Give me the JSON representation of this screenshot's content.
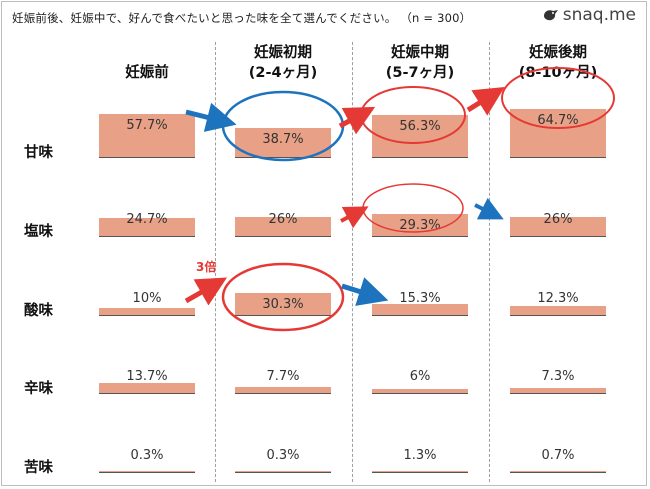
{
  "title": "妊娠前後、妊娠中で、好んで食べたいと思った味を全て選んでください。 （n = 300）",
  "logo": {
    "text": "snaq.me",
    "icon": "bird-logo-icon"
  },
  "annotation_note": "3倍",
  "colors": {
    "bar": "#e8a186",
    "red_highlight": "#e53935",
    "blue_highlight": "#1e73be"
  },
  "chart_data": {
    "type": "bar",
    "categories": [
      {
        "label": "妊娠前",
        "sub": ""
      },
      {
        "label": "妊娠初期",
        "sub": "(2-4ヶ月)"
      },
      {
        "label": "妊娠中期",
        "sub": "(5-7ヶ月)"
      },
      {
        "label": "妊娠後期",
        "sub": "(8-10ヶ月)"
      }
    ],
    "series": [
      {
        "name": "甘味",
        "values": [
          57.7,
          38.7,
          56.3,
          64.7
        ],
        "labels": [
          "57.7%",
          "38.7%",
          "56.3%",
          "64.7%"
        ]
      },
      {
        "name": "塩味",
        "values": [
          24.7,
          26,
          29.3,
          26
        ],
        "labels": [
          "24.7%",
          "26%",
          "29.3%",
          "26%"
        ]
      },
      {
        "name": "酸味",
        "values": [
          10,
          30.3,
          15.3,
          12.3
        ],
        "labels": [
          "10%",
          "30.3%",
          "15.3%",
          "12.3%"
        ]
      },
      {
        "name": "辛味",
        "values": [
          13.7,
          7.7,
          6,
          7.3
        ],
        "labels": [
          "13.7%",
          "7.7%",
          "6%",
          "7.3%"
        ]
      },
      {
        "name": "苦味",
        "values": [
          0.3,
          0.3,
          1.3,
          0.7
        ],
        "labels": [
          "0.3%",
          "0.3%",
          "1.3%",
          "0.7%"
        ]
      }
    ],
    "ylim": [
      0,
      100
    ],
    "grid": false,
    "legend": "none"
  }
}
